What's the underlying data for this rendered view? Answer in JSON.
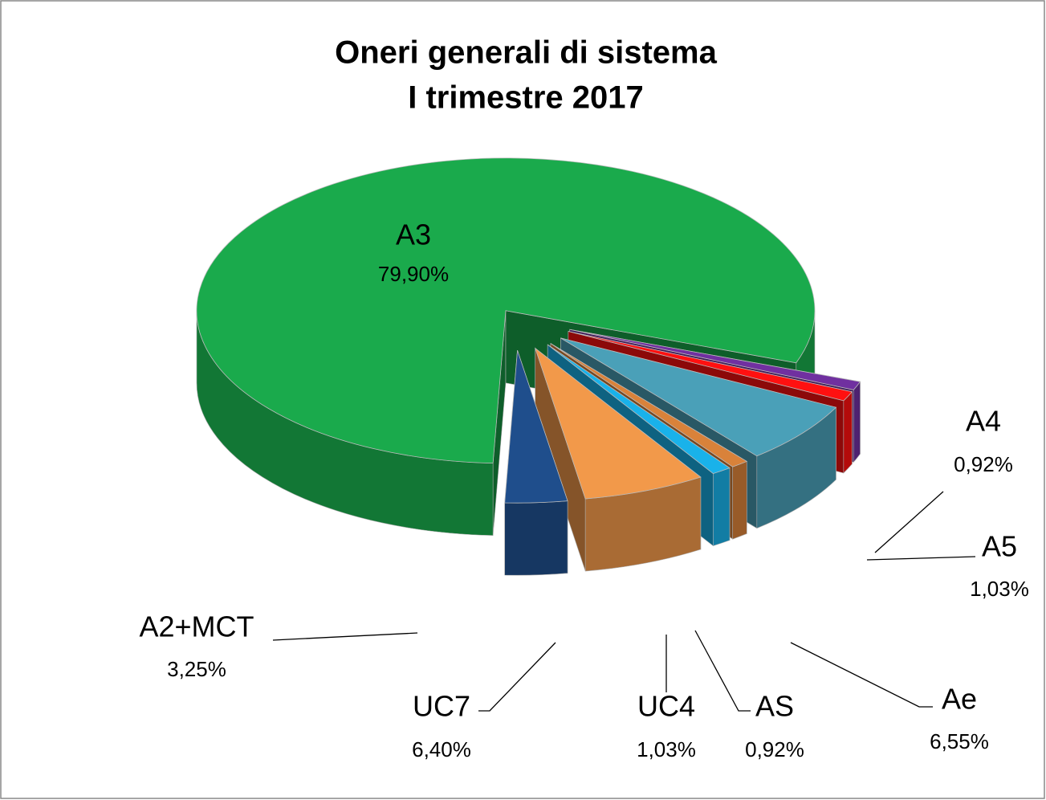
{
  "chart_data": {
    "type": "pie",
    "title": [
      "Oneri generali di sistema",
      "I trimestre 2017"
    ],
    "categories": [
      "A4",
      "A5",
      "Ae",
      "AS",
      "UC4",
      "UC7",
      "A2+MCT",
      "A3"
    ],
    "values": [
      0.92,
      1.03,
      6.55,
      0.92,
      1.03,
      6.4,
      3.25,
      79.9
    ],
    "value_labels": [
      "0,92%",
      "1,03%",
      "6,55%",
      "0,92%",
      "1,03%",
      "6,40%",
      "3,25%",
      "79,90%"
    ],
    "colors": [
      "#7030a0",
      "#ff1010",
      "#4aa0b8",
      "#d9823a",
      "#19b2ea",
      "#f2994a",
      "#1f4e8c",
      "#1aaa4c"
    ]
  }
}
